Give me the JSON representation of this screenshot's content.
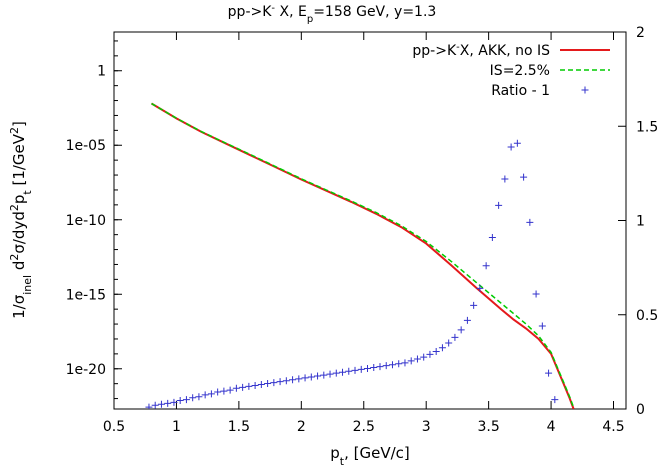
{
  "chart_data": {
    "type": "line",
    "title_parts": [
      "pp->K",
      "-",
      " X, E",
      "p",
      "=158 GeV, y=1.3"
    ],
    "xlabel_parts": [
      "p",
      "t",
      ", [GeV/c]"
    ],
    "ylabel_parts": [
      "1/σ",
      "inel",
      " d",
      "2",
      "σ/dyd",
      "2",
      "p",
      "t",
      " [1/GeV",
      "2",
      "]"
    ],
    "x_ticks": [
      "0.5",
      "1",
      "1.5",
      "2",
      "2.5",
      "3",
      "3.5",
      "4",
      "4.5"
    ],
    "y_ticks": [
      "1",
      "1e-05",
      "1e-10",
      "1e-15",
      "1e-20"
    ],
    "y2_ticks": [
      "0",
      "0.5",
      "1",
      "1.5",
      "2"
    ],
    "xlim": [
      0.5,
      4.6
    ],
    "ylim_log10": [
      -22.7,
      2.6
    ],
    "y2lim": [
      0,
      2
    ],
    "grid": false,
    "legend": "top-right",
    "series": [
      {
        "name_parts": [
          "pp->K",
          "-",
          "X, AKK, no IS"
        ],
        "axis": "left",
        "style": "solid",
        "color": "#e41a1c",
        "x": [
          0.8,
          1.0,
          1.2,
          1.4,
          1.6,
          1.8,
          2.0,
          2.2,
          2.4,
          2.6,
          2.8,
          3.0,
          3.2,
          3.4,
          3.6,
          3.7,
          3.8,
          3.9,
          4.0,
          4.05,
          4.1,
          4.15,
          4.18
        ],
        "y": [
          0.0063,
          0.00063,
          7.9e-05,
          1.26e-05,
          2e-06,
          3.2e-07,
          5e-08,
          8.9e-09,
          1.58e-09,
          2.5e-10,
          3.2e-11,
          2.5e-12,
          8.9e-14,
          2.8e-15,
          1e-16,
          2e-17,
          5e-18,
          1e-18,
          1e-19,
          1e-20,
          1e-21,
          1e-22,
          2e-23
        ]
      },
      {
        "name_parts": [
          "IS=2.5%"
        ],
        "axis": "left",
        "style": "dashed",
        "color": "#00cc00",
        "x": [
          0.8,
          1.0,
          1.2,
          1.4,
          1.6,
          1.8,
          2.0,
          2.2,
          2.4,
          2.6,
          2.8,
          3.0,
          3.2,
          3.4,
          3.6,
          3.7,
          3.8,
          3.9,
          4.0,
          4.05,
          4.1,
          4.15,
          4.18
        ],
        "y": [
          0.0063,
          0.00065,
          8.3e-05,
          1.33e-05,
          2.2e-06,
          3.5e-07,
          5.6e-08,
          1e-08,
          1.78e-09,
          3e-10,
          4e-11,
          3.5e-12,
          1.6e-13,
          6.3e-15,
          2.5e-16,
          5e-17,
          1e-17,
          1.6e-18,
          1.26e-19,
          1.26e-20,
          1.26e-21,
          1.26e-22,
          2.5e-23
        ]
      },
      {
        "name_parts": [
          "Ratio - 1"
        ],
        "axis": "right",
        "style": "points",
        "color": "#3333cc",
        "x": [
          0.78,
          0.83,
          0.88,
          0.93,
          0.98,
          1.03,
          1.08,
          1.13,
          1.18,
          1.23,
          1.28,
          1.33,
          1.38,
          1.43,
          1.48,
          1.53,
          1.58,
          1.63,
          1.68,
          1.73,
          1.78,
          1.83,
          1.88,
          1.93,
          1.98,
          2.03,
          2.08,
          2.13,
          2.18,
          2.23,
          2.28,
          2.33,
          2.38,
          2.43,
          2.48,
          2.53,
          2.58,
          2.63,
          2.68,
          2.73,
          2.78,
          2.83,
          2.88,
          2.93,
          2.98,
          3.03,
          3.08,
          3.13,
          3.18,
          3.23,
          3.28,
          3.33,
          3.38,
          3.43,
          3.48,
          3.53,
          3.58,
          3.63,
          3.68,
          3.73,
          3.78,
          3.83,
          3.88,
          3.93,
          3.98,
          4.03
        ],
        "y": [
          0.01,
          0.02,
          0.025,
          0.03,
          0.035,
          0.045,
          0.05,
          0.06,
          0.065,
          0.075,
          0.08,
          0.09,
          0.095,
          0.1,
          0.11,
          0.115,
          0.12,
          0.125,
          0.13,
          0.135,
          0.14,
          0.145,
          0.15,
          0.155,
          0.16,
          0.165,
          0.17,
          0.175,
          0.18,
          0.185,
          0.19,
          0.195,
          0.2,
          0.205,
          0.21,
          0.215,
          0.22,
          0.225,
          0.23,
          0.235,
          0.24,
          0.245,
          0.255,
          0.265,
          0.275,
          0.29,
          0.305,
          0.325,
          0.35,
          0.38,
          0.42,
          0.47,
          0.55,
          0.64,
          0.76,
          0.91,
          1.08,
          1.22,
          1.39,
          1.41,
          1.23,
          0.99,
          0.61,
          0.44,
          0.19,
          0.05
        ]
      }
    ]
  }
}
